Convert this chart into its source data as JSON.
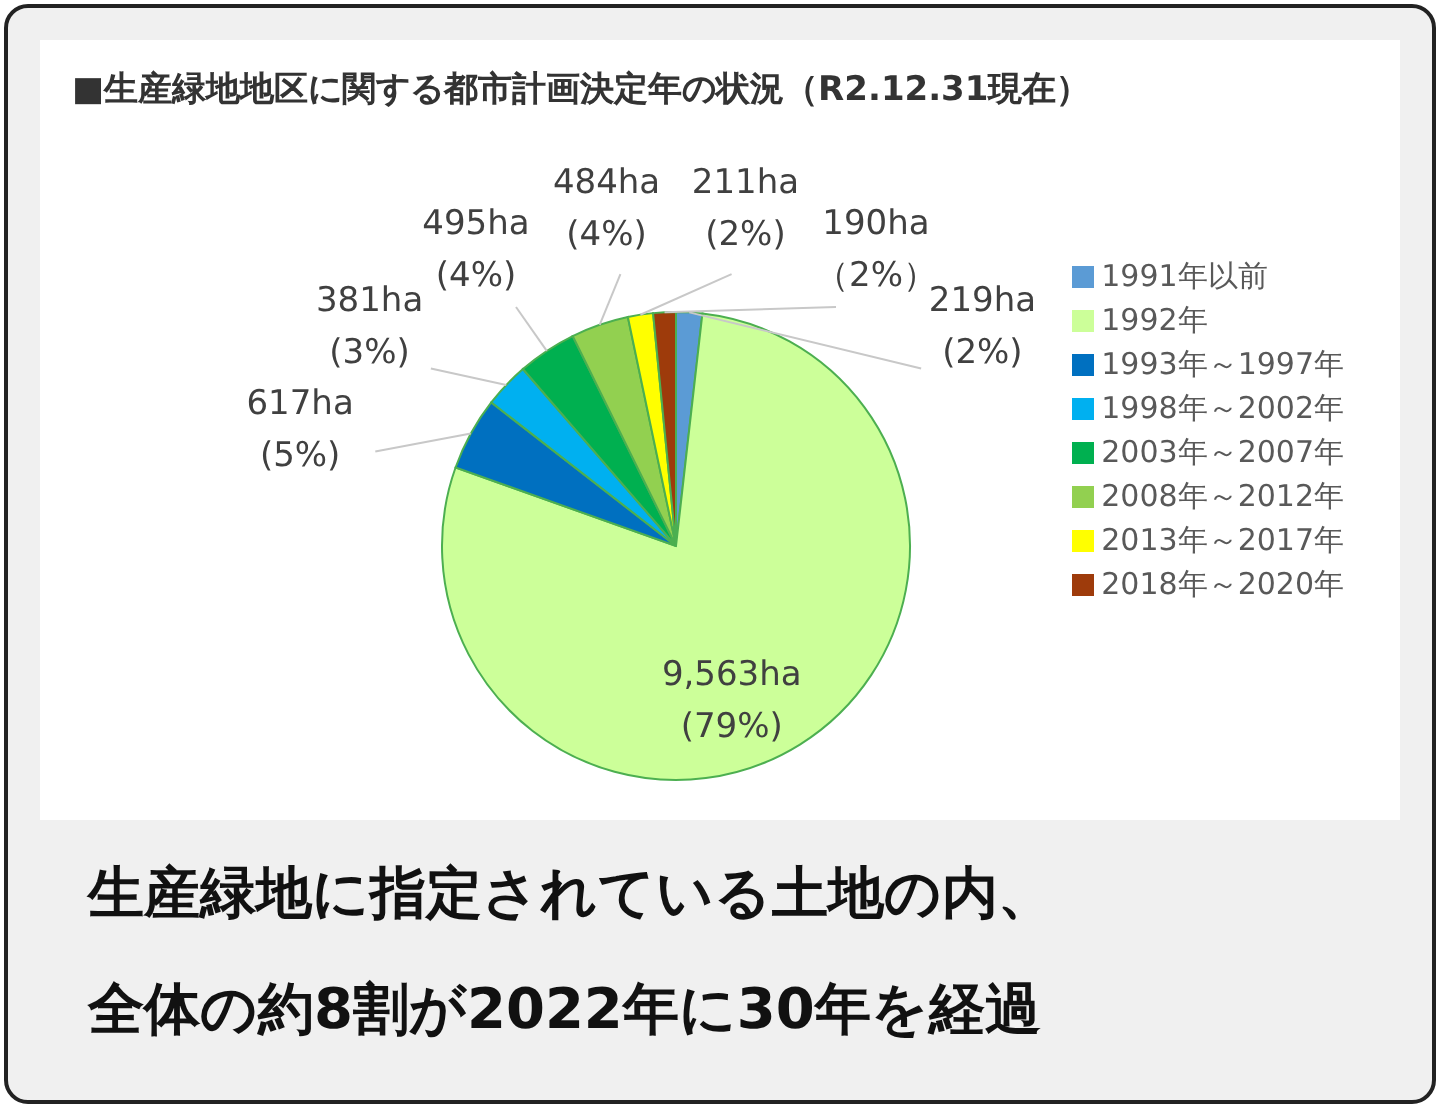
{
  "chart_data": {
    "type": "pie",
    "title": "■生産緑地地区に関する都市計画決定年の状況（R2.12.31現在）",
    "categories": [
      "1991年以前",
      "1992年",
      "1993年～1997年",
      "1998年～2002年",
      "2003年～2007年",
      "2008年～2012年",
      "2013年～2017年",
      "2018年～2020年"
    ],
    "values": [
      219,
      9563,
      617,
      381,
      495,
      484,
      211,
      190
    ],
    "colors": [
      "#5b9bd5",
      "#ccff99",
      "#0070c0",
      "#00b0f0",
      "#00b050",
      "#92d050",
      "#ffff00",
      "#9e3b0b"
    ],
    "value_labels": [
      "219ha\n(2%)",
      "9,563ha\n(79%)",
      "617ha\n(5%)",
      "381ha\n(3%)",
      "495ha\n(4%)",
      "484ha\n(4%)",
      "211ha\n(2%)",
      "190ha\n（2%）"
    ],
    "legend": "right",
    "annotations": [
      "生産緑地に指定されている土地の内、",
      "全体の約8割が2022年に30年を経過"
    ]
  }
}
